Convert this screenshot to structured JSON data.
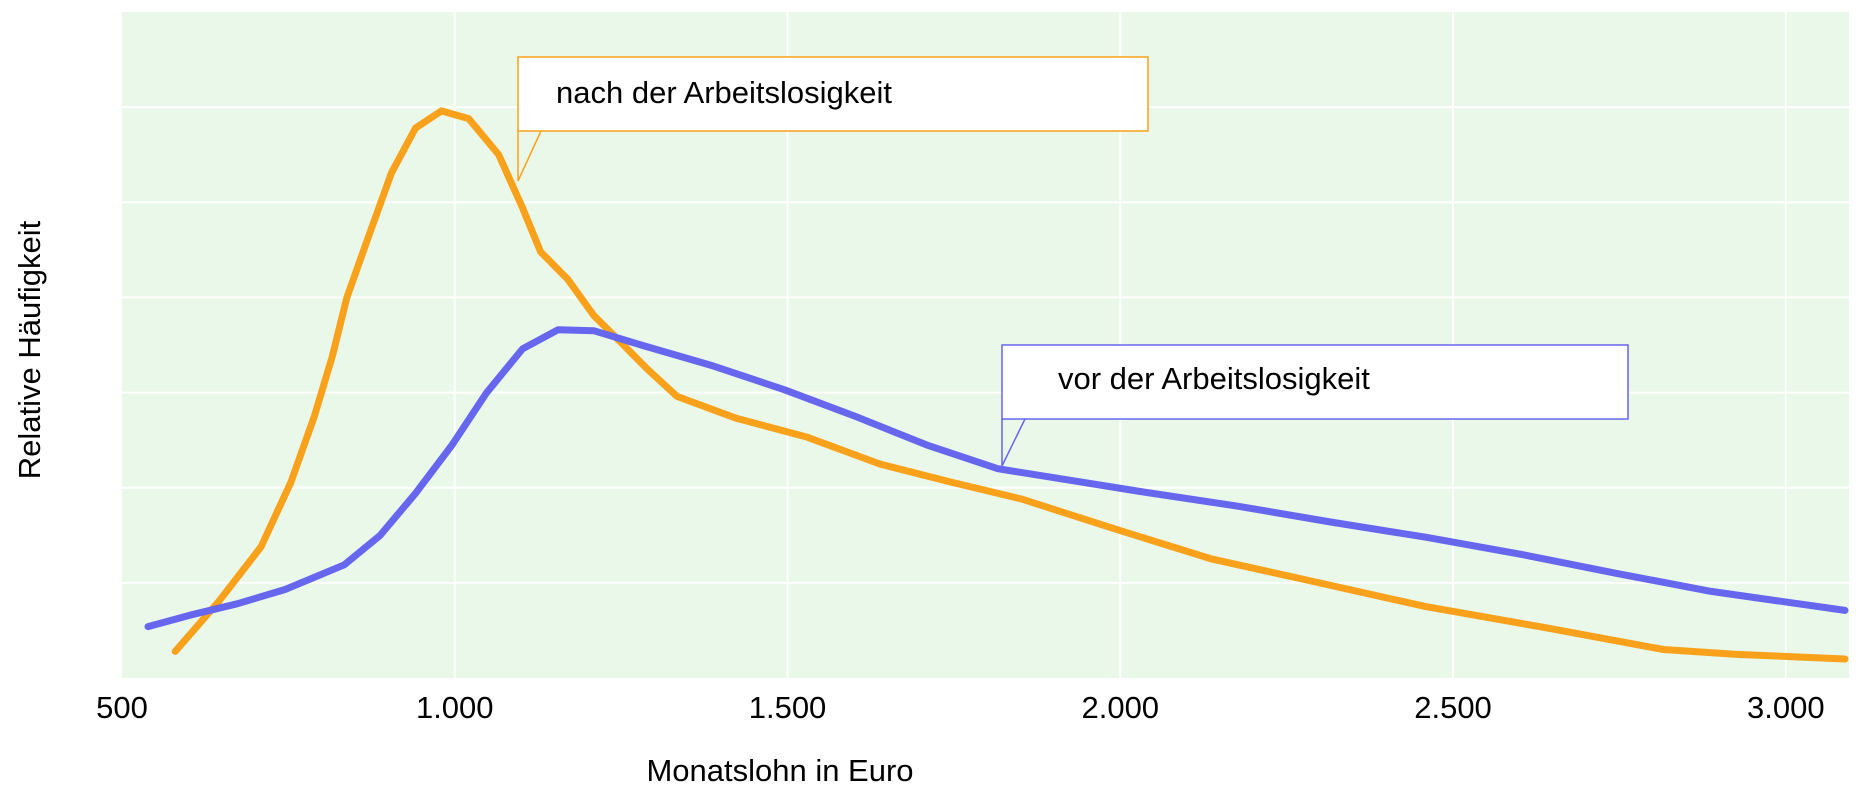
{
  "chart_data": {
    "type": "line",
    "xlabel": "Monatslohn in Euro",
    "ylabel": "Relative Häufigkeit",
    "xlim": [
      500,
      3095
    ],
    "xticks": [
      500,
      {
        "value": 1000,
        "label": "1.000"
      },
      {
        "value": 1500,
        "label": "1.500"
      },
      {
        "value": 2000,
        "label": "2.000"
      },
      {
        "value": 2500,
        "label": "2.500"
      },
      {
        "value": 3000,
        "label": "3.000"
      }
    ],
    "ylim": [
      0,
      7
    ],
    "yticks": [
      1,
      2,
      3,
      4,
      5,
      6
    ],
    "grid": true,
    "background": "#eaf8ea",
    "series": [
      {
        "name": "nach der Arbeitslosigkeit",
        "color": "#f9a11b",
        "x": [
          580,
          646,
          709,
          754,
          789,
          816,
          838,
          870,
          905,
          941,
          980,
          1021,
          1066,
          1102,
          1129,
          1170,
          1209,
          1245,
          1289,
          1334,
          1423,
          1530,
          1638,
          1745,
          1852,
          1995,
          2138,
          2280,
          2459,
          2638,
          2816,
          2923,
          3089
        ],
        "values": [
          0.28,
          0.81,
          1.38,
          2.06,
          2.75,
          3.38,
          4.0,
          4.63,
          5.31,
          5.78,
          5.96,
          5.88,
          5.5,
          4.94,
          4.48,
          4.19,
          3.81,
          3.56,
          3.25,
          2.96,
          2.73,
          2.53,
          2.25,
          2.06,
          1.88,
          1.56,
          1.25,
          1.03,
          0.75,
          0.53,
          0.3,
          0.25,
          0.2
        ]
      },
      {
        "name": "vor der Arbeitslosigkeit",
        "color": "#6666ee",
        "x": [
          539,
          602,
          673,
          745,
          834,
          888,
          941,
          995,
          1048,
          1102,
          1155,
          1209,
          1280,
          1388,
          1495,
          1602,
          1709,
          1816,
          1923,
          2030,
          2173,
          2316,
          2459,
          2602,
          2745,
          2888,
          3089
        ],
        "values": [
          0.54,
          0.66,
          0.78,
          0.93,
          1.19,
          1.5,
          1.94,
          2.44,
          3.0,
          3.46,
          3.66,
          3.65,
          3.5,
          3.28,
          3.03,
          2.75,
          2.45,
          2.2,
          2.08,
          1.96,
          1.81,
          1.64,
          1.48,
          1.3,
          1.1,
          0.91,
          0.71
        ]
      }
    ]
  }
}
